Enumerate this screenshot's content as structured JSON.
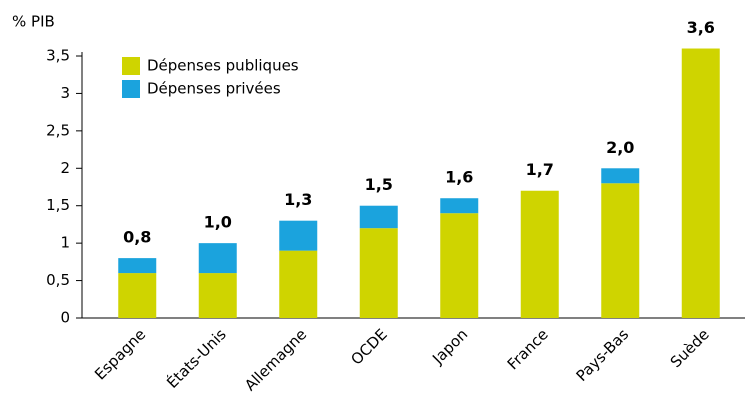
{
  "chart_data": {
    "type": "stacked_bar",
    "y_axis_label": "% PIB",
    "categories": [
      "Espagne",
      "États-Unis",
      "Allemagne",
      "OCDE",
      "Japon",
      "France",
      "Pays-Bas",
      "Suède"
    ],
    "series": [
      {
        "name": "Dépenses publiques",
        "color": "#cfd400",
        "values": [
          0.6,
          0.6,
          0.9,
          1.2,
          1.4,
          1.7,
          1.8,
          3.6
        ]
      },
      {
        "name": "Dépenses privées",
        "color": "#1ba3dd",
        "values": [
          0.2,
          0.4,
          0.4,
          0.3,
          0.2,
          0,
          0.2,
          0
        ]
      }
    ],
    "totals": [
      0.8,
      1.0,
      1.3,
      1.5,
      1.6,
      1.7,
      2.0,
      3.6
    ],
    "total_labels": [
      "0,8",
      "1,0",
      "1,3",
      "1,5",
      "1,6",
      "1,7",
      "2,0",
      "3,6"
    ],
    "ylim": [
      0,
      3.5
    ],
    "yticks": [
      0,
      {
        "value": 0.5,
        "label": "0,5"
      },
      1,
      {
        "value": 1.5,
        "label": "1,5"
      },
      2,
      {
        "value": 2.5,
        "label": "2,5"
      },
      3,
      {
        "value": 3.5,
        "label": "3,5"
      }
    ],
    "legend": "upper left"
  }
}
